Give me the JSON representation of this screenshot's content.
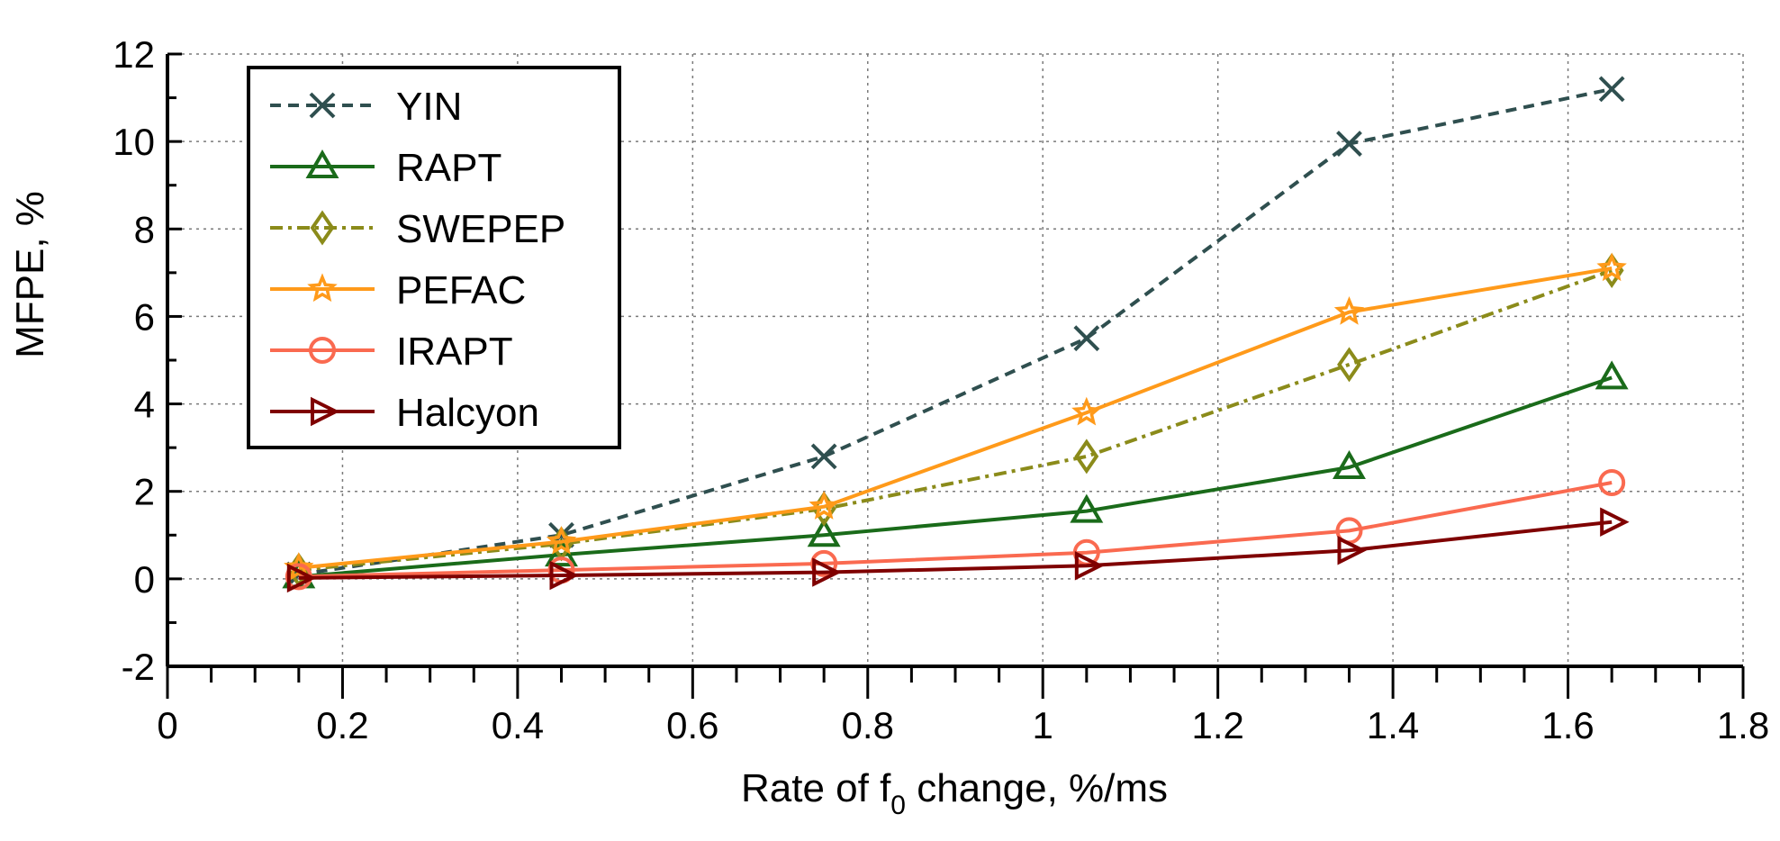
{
  "chart_data": {
    "type": "line",
    "title": "",
    "xlabel": "Rate of f0 change, %/ms",
    "xlabel_parts": {
      "before": "Rate of f",
      "subscript": "0",
      "after": " change, %/ms"
    },
    "ylabel": "MFPE, %",
    "xlim": [
      0,
      1.8
    ],
    "ylim": [
      -2,
      12
    ],
    "xticks": [
      0,
      0.2,
      0.4,
      0.6,
      0.8,
      1,
      1.2,
      1.4,
      1.6,
      1.8
    ],
    "xtick_labels": [
      "0",
      "0.2",
      "0.4",
      "0.6",
      "0.8",
      "1",
      "1.2",
      "1.4",
      "1.6",
      "1.8"
    ],
    "yticks": [
      -2,
      0,
      2,
      4,
      6,
      8,
      10,
      12
    ],
    "ytick_labels": [
      "-2",
      "0",
      "2",
      "4",
      "6",
      "8",
      "10",
      "12"
    ],
    "grid": true,
    "legend_position": "top-left",
    "x": [
      0.15,
      0.45,
      0.75,
      1.05,
      1.35,
      1.65
    ],
    "series": [
      {
        "name": "YIN",
        "values": [
          0.1,
          1.0,
          2.8,
          5.5,
          9.95,
          11.2
        ],
        "color": "#2f4f4f",
        "dash": "dash",
        "marker": "x"
      },
      {
        "name": "RAPT",
        "values": [
          0.05,
          0.55,
          1.0,
          1.55,
          2.55,
          4.6
        ],
        "color": "#1a6b1a",
        "dash": "solid",
        "marker": "triangle"
      },
      {
        "name": "SWEPEP",
        "values": [
          0.2,
          0.8,
          1.6,
          2.8,
          4.9,
          7.05
        ],
        "color": "#8b8b1a",
        "dash": "dashdot",
        "marker": "diamond"
      },
      {
        "name": "PEFAC",
        "values": [
          0.25,
          0.85,
          1.65,
          3.8,
          6.1,
          7.1
        ],
        "color": "#ff9a1a",
        "dash": "solid",
        "marker": "star"
      },
      {
        "name": "IRAPT",
        "values": [
          0.05,
          0.2,
          0.35,
          0.6,
          1.1,
          2.2
        ],
        "color": "#fa6a50",
        "dash": "solid",
        "marker": "circle"
      },
      {
        "name": "Halcyon",
        "values": [
          0.02,
          0.08,
          0.15,
          0.3,
          0.65,
          1.3
        ],
        "color": "#7f0000",
        "dash": "solid",
        "marker": "triangle-right"
      }
    ]
  }
}
